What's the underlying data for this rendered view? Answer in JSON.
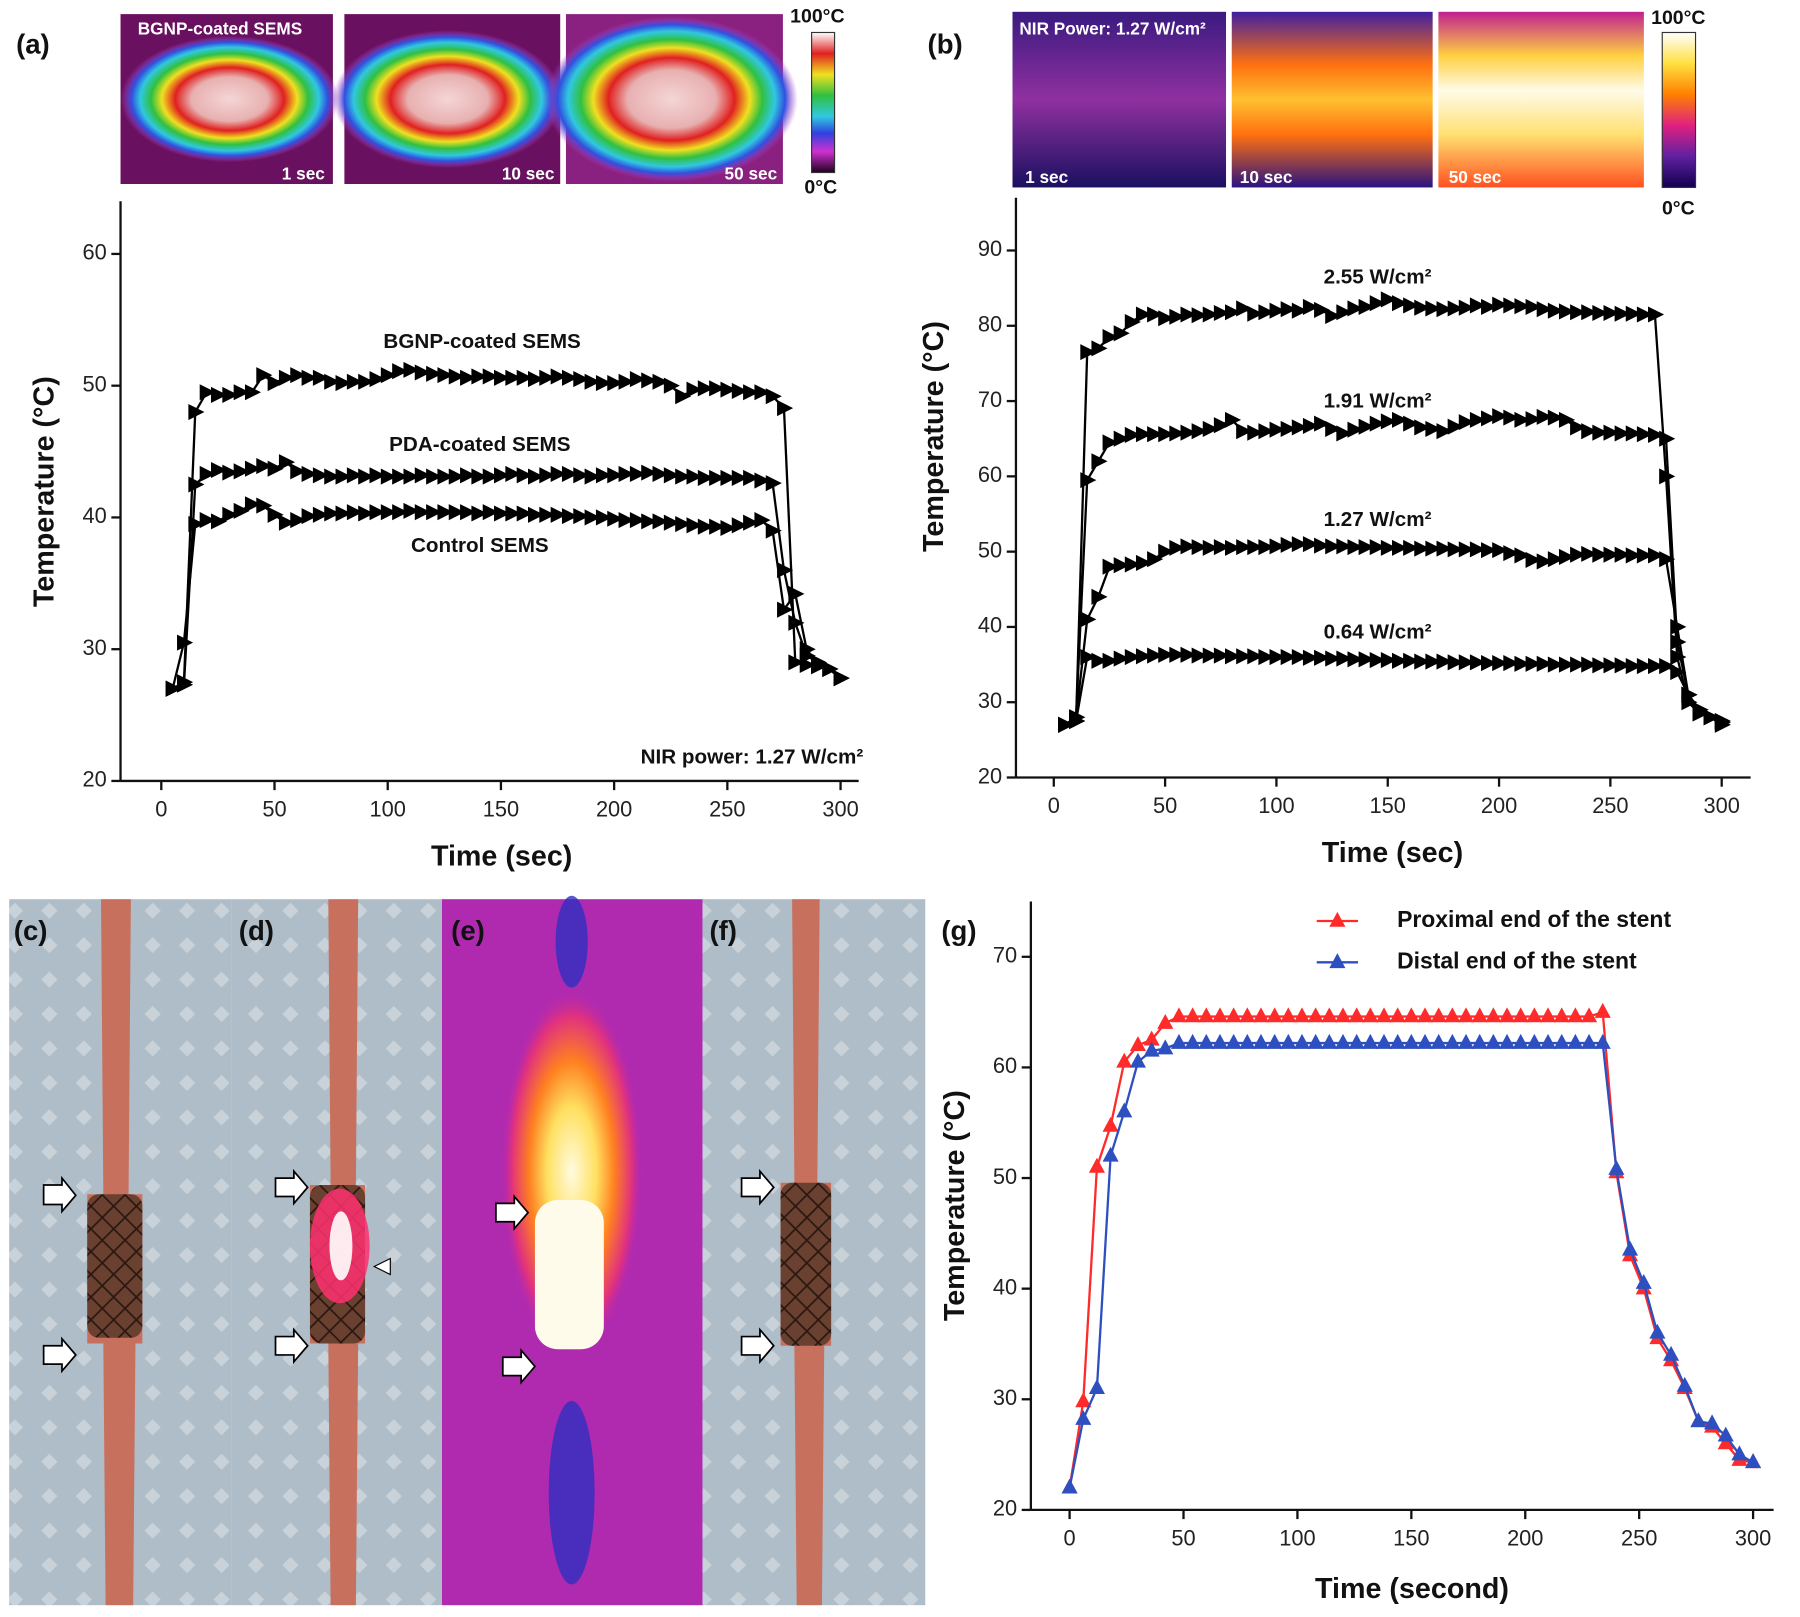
{
  "panel_labels": [
    "(a)",
    "(b)",
    "(c)",
    "(d)",
    "(e)",
    "(f)",
    "(g)"
  ],
  "thermal_a": {
    "title": "BGNP-coated SEMS",
    "times": [
      "1 sec",
      "10 sec",
      "50 sec"
    ],
    "scale_max": "100°C",
    "scale_min": "0°C"
  },
  "thermal_b": {
    "title": "NIR Power: 1.27 W/cm²",
    "times": [
      "1 sec",
      "10 sec",
      "50 sec"
    ],
    "scale_max": "100°C",
    "scale_min": "0°C"
  },
  "chart_data": [
    {
      "type": "line",
      "marker": "triangle-right",
      "xlabel": "Time (sec)",
      "ylabel": "Temperature (°C)",
      "xlim": [
        -18,
        308
      ],
      "ylim": [
        20,
        64
      ],
      "xticks": [
        0,
        50,
        100,
        150,
        200,
        250,
        300
      ],
      "yticks": [
        20,
        30,
        40,
        50,
        60
      ],
      "annotations": [
        "BGNP-coated SEMS",
        "PDA-coated SEMS",
        "Control SEMS",
        "NIR power: 1.27 W/cm²"
      ],
      "x": [
        5,
        10,
        15,
        20,
        25,
        30,
        35,
        40,
        45,
        50,
        55,
        60,
        65,
        70,
        75,
        80,
        85,
        90,
        95,
        100,
        105,
        110,
        115,
        120,
        125,
        130,
        135,
        140,
        145,
        150,
        155,
        160,
        165,
        170,
        175,
        180,
        185,
        190,
        195,
        200,
        205,
        210,
        215,
        220,
        225,
        230,
        235,
        240,
        245,
        250,
        255,
        260,
        265,
        270,
        275,
        280,
        285,
        290,
        295,
        300
      ],
      "series": [
        {
          "color": "#000000",
          "values": [
            27,
            27.5,
            48,
            49.5,
            49.3,
            49.3,
            49.5,
            49.5,
            50.8,
            50.2,
            50.6,
            50.8,
            50.6,
            50.6,
            50.3,
            50.2,
            50.3,
            50.3,
            50.5,
            50.8,
            51.1,
            51.2,
            51,
            50.9,
            50.8,
            50.7,
            50.6,
            50.7,
            50.7,
            50.6,
            50.6,
            50.6,
            50.5,
            50.6,
            50.7,
            50.6,
            50.5,
            50.3,
            50.2,
            50.2,
            50.3,
            50.5,
            50.4,
            50.3,
            50,
            49.2,
            49.7,
            49.8,
            49.8,
            49.7,
            49.6,
            49.5,
            49.5,
            49.2,
            48.3,
            29,
            28.8,
            28.7,
            28.5,
            27.8
          ]
        },
        {
          "color": "#000000",
          "values": [
            27,
            27.3,
            42.5,
            43.3,
            43.6,
            43.4,
            43.5,
            43.7,
            43.9,
            43.7,
            44.2,
            43.5,
            43.3,
            43.2,
            43.1,
            43.1,
            43.2,
            43.1,
            43.2,
            43.1,
            43.1,
            43.1,
            43.2,
            43.1,
            43.1,
            43.1,
            43.2,
            43.1,
            43.1,
            43.2,
            43.3,
            43.2,
            43.1,
            43.2,
            43.3,
            43.3,
            43.2,
            43.1,
            43.2,
            43.2,
            43.3,
            43.3,
            43.4,
            43.3,
            43.2,
            43.1,
            43.1,
            43,
            43,
            43,
            43,
            43,
            42.8,
            42.6,
            36,
            32,
            29.5,
            29,
            28.5,
            27.8
          ]
        },
        {
          "color": "#000000",
          "values": [
            27,
            30.5,
            39.5,
            39.8,
            39.7,
            40.2,
            40.5,
            41,
            40.9,
            40.2,
            39.6,
            39.8,
            40.1,
            40.2,
            40.3,
            40.3,
            40.4,
            40.3,
            40.4,
            40.4,
            40.4,
            40.5,
            40.4,
            40.4,
            40.4,
            40.4,
            40.4,
            40.3,
            40.4,
            40.3,
            40.3,
            40.3,
            40.2,
            40.2,
            40.2,
            40.1,
            40.1,
            40,
            40,
            39.9,
            39.8,
            39.8,
            39.7,
            39.7,
            39.6,
            39.5,
            39.4,
            39.3,
            39.3,
            39.2,
            39.4,
            39.6,
            39.8,
            39,
            33,
            34.2,
            30,
            28.8,
            28.5,
            27.8
          ]
        }
      ]
    },
    {
      "type": "line",
      "marker": "triangle-right",
      "xlabel": "Time (sec)",
      "ylabel": "Temperature (°C)",
      "xlim": [
        -17,
        313
      ],
      "ylim": [
        20,
        97
      ],
      "xticks": [
        0,
        50,
        100,
        150,
        200,
        250,
        300
      ],
      "yticks": [
        20,
        30,
        40,
        50,
        60,
        70,
        80,
        90
      ],
      "annotations": [
        "2.55 W/cm²",
        "1.91 W/cm²",
        "1.27 W/cm²",
        "0.64 W/cm²"
      ],
      "x": [
        5,
        10,
        15,
        20,
        25,
        30,
        35,
        40,
        45,
        50,
        55,
        60,
        65,
        70,
        75,
        80,
        85,
        90,
        95,
        100,
        105,
        110,
        115,
        120,
        125,
        130,
        135,
        140,
        145,
        150,
        155,
        160,
        165,
        170,
        175,
        180,
        185,
        190,
        195,
        200,
        205,
        210,
        215,
        220,
        225,
        230,
        235,
        240,
        245,
        250,
        255,
        260,
        265,
        270,
        275,
        280,
        285,
        290,
        295,
        300
      ],
      "series": [
        {
          "color": "#000000",
          "values": [
            27,
            27.5,
            76.5,
            77,
            78.5,
            79,
            80.5,
            81.5,
            81.5,
            81,
            81.2,
            81.5,
            81.4,
            81.5,
            81.7,
            81.8,
            82.3,
            81.6,
            81.8,
            82,
            82.2,
            82,
            82.5,
            82.1,
            81.3,
            81.8,
            82.3,
            82.5,
            83,
            83.5,
            83,
            82.7,
            82.4,
            82.3,
            82.2,
            82.3,
            82.4,
            82.7,
            82.5,
            82.8,
            82.7,
            82.6,
            82.5,
            82.2,
            82,
            81.9,
            81.8,
            81.8,
            81.7,
            81.7,
            81.6,
            81.6,
            81.5,
            81.5,
            60,
            36,
            30,
            28.5,
            28,
            27
          ]
        },
        {
          "color": "#000000",
          "values": [
            27,
            28,
            59.5,
            62,
            64.5,
            65,
            65.5,
            65.6,
            65.6,
            65.6,
            65.7,
            65.8,
            66,
            66.3,
            66.8,
            67.5,
            66,
            65.8,
            66,
            66.2,
            66.3,
            66.5,
            66.7,
            67,
            66.3,
            65.7,
            66.2,
            66.6,
            67,
            67.3,
            67.5,
            67,
            66.5,
            66.3,
            66,
            66.6,
            67.2,
            67.5,
            67.7,
            68,
            67.8,
            67.5,
            67.6,
            67.9,
            67.8,
            67.5,
            66.5,
            66,
            65.8,
            65.8,
            65.7,
            65.7,
            65.6,
            65.5,
            65,
            38,
            31,
            28.5,
            28,
            27.5
          ]
        },
        {
          "color": "#000000",
          "values": [
            27,
            28,
            41,
            44,
            48,
            48.2,
            48.3,
            48.5,
            49,
            50,
            50.5,
            50.7,
            50.6,
            50.5,
            50.6,
            50.5,
            50.6,
            50.6,
            50.6,
            50.7,
            50.9,
            51,
            51,
            50.8,
            50.7,
            50.7,
            50.6,
            50.6,
            50.6,
            50.5,
            50.5,
            50.5,
            50.4,
            50.4,
            50.4,
            50.3,
            50.3,
            50.3,
            50.2,
            50.2,
            49.8,
            49.5,
            48.9,
            48.7,
            49,
            49.3,
            49.6,
            49.7,
            49.6,
            49.6,
            49.6,
            49.5,
            49.5,
            49.5,
            49,
            40,
            31,
            29,
            28,
            27.5
          ]
        },
        {
          "color": "#000000",
          "values": [
            27,
            27.5,
            36,
            35.5,
            35.5,
            35.8,
            36,
            36.1,
            36.2,
            36.3,
            36.3,
            36.3,
            36.2,
            36.2,
            36.2,
            36.1,
            36.1,
            36.1,
            36,
            36,
            36,
            36,
            35.9,
            35.9,
            35.8,
            35.8,
            35.7,
            35.7,
            35.6,
            35.6,
            35.5,
            35.5,
            35.4,
            35.4,
            35.4,
            35.3,
            35.3,
            35.3,
            35.2,
            35.2,
            35.2,
            35.1,
            35.1,
            35.1,
            35,
            35,
            35,
            35,
            34.9,
            34.9,
            34.9,
            34.8,
            34.8,
            34.8,
            34.8,
            34,
            31,
            29,
            28,
            27.3
          ]
        }
      ]
    },
    {
      "type": "line",
      "marker": "triangle-up",
      "xlabel": "Time (second)",
      "ylabel": "Temperature (°C)",
      "xlim": [
        -17,
        309
      ],
      "ylim": [
        20,
        75
      ],
      "xticks": [
        0,
        50,
        100,
        150,
        200,
        250,
        300
      ],
      "yticks": [
        20,
        30,
        40,
        50,
        60,
        70
      ],
      "x": [
        0,
        6,
        12,
        18,
        24,
        30,
        36,
        42,
        48,
        54,
        60,
        66,
        72,
        78,
        84,
        90,
        96,
        102,
        108,
        114,
        120,
        126,
        132,
        138,
        144,
        150,
        156,
        162,
        168,
        174,
        180,
        186,
        192,
        198,
        204,
        210,
        216,
        222,
        228,
        234,
        240,
        246,
        252,
        258,
        264,
        270,
        276,
        282,
        288,
        294,
        300
      ],
      "series": [
        {
          "name": "Proximal end of the stent",
          "color": "#ff2a2a",
          "values": [
            22,
            29.8,
            51,
            54.7,
            60.5,
            62,
            62.5,
            64,
            64.6,
            64.6,
            64.6,
            64.6,
            64.6,
            64.6,
            64.6,
            64.6,
            64.6,
            64.6,
            64.6,
            64.6,
            64.6,
            64.6,
            64.6,
            64.6,
            64.6,
            64.6,
            64.6,
            64.6,
            64.6,
            64.6,
            64.6,
            64.6,
            64.6,
            64.6,
            64.6,
            64.6,
            64.6,
            64.6,
            64.6,
            65,
            50.5,
            43,
            40,
            35.5,
            33.5,
            31,
            28,
            27.5,
            26,
            24.5,
            24.3
          ]
        },
        {
          "name": "Distal end of the stent",
          "color": "#2e4fbf",
          "values": [
            22,
            28.2,
            31,
            52,
            56,
            60.5,
            61.5,
            61.7,
            62.2,
            62.2,
            62.2,
            62.2,
            62.2,
            62.2,
            62.2,
            62.2,
            62.2,
            62.2,
            62.2,
            62.2,
            62.2,
            62.2,
            62.2,
            62.2,
            62.2,
            62.2,
            62.2,
            62.2,
            62.2,
            62.2,
            62.2,
            62.2,
            62.2,
            62.2,
            62.2,
            62.2,
            62.2,
            62.2,
            62.2,
            62.2,
            50.8,
            43.5,
            40.5,
            36,
            34,
            31.2,
            28,
            27.8,
            26.7,
            25,
            24.3
          ]
        }
      ]
    }
  ]
}
